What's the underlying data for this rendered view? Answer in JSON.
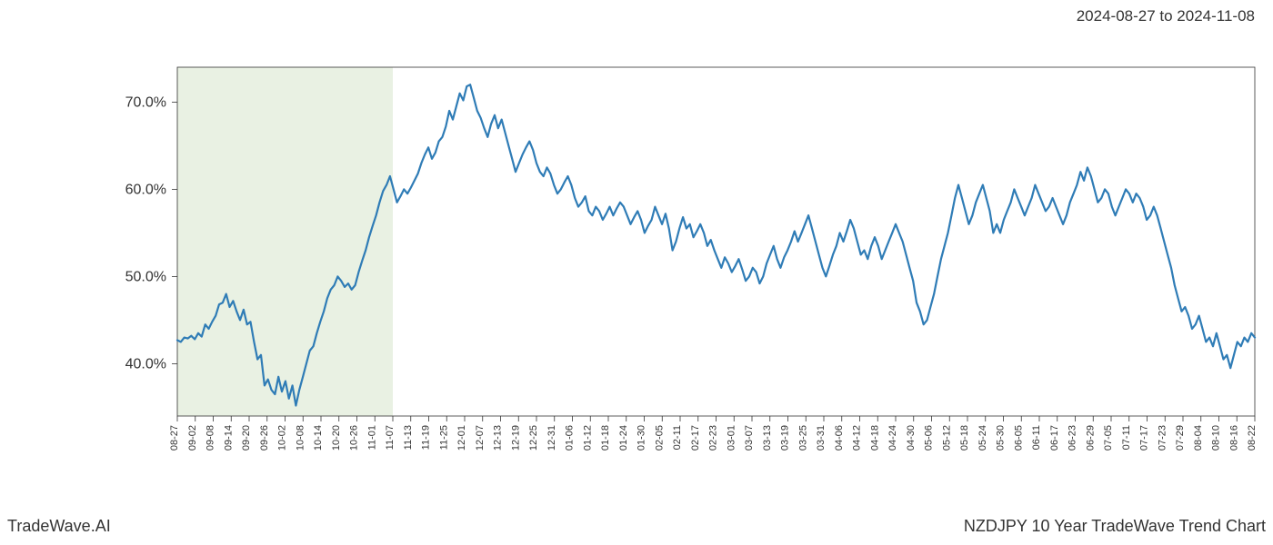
{
  "header": {
    "date_range": "2024-08-27 to 2024-11-08"
  },
  "footer": {
    "left": "TradeWave.AI",
    "right": "NZDJPY 10 Year TradeWave Trend Chart"
  },
  "chart": {
    "type": "line",
    "background_color": "#ffffff",
    "line_color": "#2f7cb6",
    "line_width": 2.2,
    "highlight_band": {
      "color": "#dde9d4",
      "opacity": 0.65,
      "x_start": "08-27",
      "x_end": "11-07"
    },
    "border_color": "#333333",
    "border_width": 0.8,
    "tick_color": "#333333",
    "y_axis": {
      "min": 34,
      "max": 74,
      "ticks": [
        40.0,
        50.0,
        60.0,
        70.0
      ],
      "tick_labels": [
        "40.0%",
        "50.0%",
        "60.0%",
        "70.0%"
      ],
      "label_fontsize": 16
    },
    "x_axis": {
      "labels": [
        "08-27",
        "09-02",
        "09-08",
        "09-14",
        "09-20",
        "09-26",
        "10-02",
        "10-08",
        "10-14",
        "10-20",
        "10-26",
        "11-01",
        "11-07",
        "11-13",
        "11-19",
        "11-25",
        "12-01",
        "12-07",
        "12-13",
        "12-19",
        "12-25",
        "12-31",
        "01-06",
        "01-12",
        "01-18",
        "01-24",
        "01-30",
        "02-05",
        "02-11",
        "02-17",
        "02-23",
        "03-01",
        "03-07",
        "03-13",
        "03-19",
        "03-25",
        "03-31",
        "04-06",
        "04-12",
        "04-18",
        "04-24",
        "04-30",
        "05-06",
        "05-12",
        "05-18",
        "05-24",
        "05-30",
        "06-05",
        "06-11",
        "06-17",
        "06-23",
        "06-29",
        "07-05",
        "07-11",
        "07-17",
        "07-23",
        "07-29",
        "08-04",
        "08-10",
        "08-16",
        "08-22"
      ],
      "label_fontsize": 11,
      "label_rotation": -90
    },
    "series": {
      "values": [
        42.7,
        42.5,
        43.0,
        42.9,
        43.2,
        42.8,
        43.5,
        43.1,
        44.5,
        44.0,
        44.8,
        45.5,
        46.8,
        47.0,
        48.0,
        46.5,
        47.2,
        46.0,
        45.0,
        46.2,
        44.5,
        44.8,
        42.5,
        40.5,
        41.0,
        37.5,
        38.2,
        37.0,
        36.5,
        38.5,
        36.8,
        38.0,
        36.0,
        37.5,
        35.2,
        37.0,
        38.5,
        40.0,
        41.5,
        42.0,
        43.5,
        44.8,
        46.0,
        47.5,
        48.5,
        49.0,
        50.0,
        49.5,
        48.8,
        49.2,
        48.5,
        49.0,
        50.5,
        51.8,
        53.0,
        54.5,
        55.8,
        57.0,
        58.5,
        59.8,
        60.5,
        61.5,
        60.0,
        58.5,
        59.2,
        60.0,
        59.5,
        60.2,
        61.0,
        61.8,
        63.0,
        64.0,
        64.8,
        63.5,
        64.2,
        65.5,
        66.0,
        67.2,
        69.0,
        68.0,
        69.5,
        71.0,
        70.2,
        71.8,
        72.0,
        70.5,
        69.0,
        68.2,
        67.0,
        66.0,
        67.5,
        68.5,
        67.0,
        68.0,
        66.5,
        65.0,
        63.5,
        62.0,
        63.0,
        64.0,
        64.8,
        65.5,
        64.5,
        63.0,
        62.0,
        61.5,
        62.5,
        61.8,
        60.5,
        59.5,
        60.0,
        60.8,
        61.5,
        60.5,
        59.0,
        58.0,
        58.5,
        59.2,
        57.5,
        57.0,
        58.0,
        57.5,
        56.5,
        57.2,
        58.0,
        57.0,
        57.8,
        58.5,
        58.0,
        57.0,
        56.0,
        56.8,
        57.5,
        56.5,
        55.0,
        55.8,
        56.5,
        58.0,
        57.0,
        56.0,
        57.2,
        55.5,
        53.0,
        54.0,
        55.5,
        56.8,
        55.5,
        56.0,
        54.5,
        55.2,
        56.0,
        55.0,
        53.5,
        54.2,
        53.0,
        52.0,
        51.0,
        52.2,
        51.5,
        50.5,
        51.2,
        52.0,
        50.8,
        49.5,
        50.0,
        51.0,
        50.5,
        49.2,
        50.0,
        51.5,
        52.5,
        53.5,
        52.0,
        51.0,
        52.2,
        53.0,
        54.0,
        55.2,
        54.0,
        55.0,
        56.0,
        57.0,
        55.5,
        54.0,
        52.5,
        51.0,
        50.0,
        51.2,
        52.5,
        53.5,
        55.0,
        54.0,
        55.2,
        56.5,
        55.5,
        54.0,
        52.5,
        53.0,
        52.0,
        53.5,
        54.5,
        53.5,
        52.0,
        53.0,
        54.0,
        55.0,
        56.0,
        55.0,
        54.0,
        52.5,
        51.0,
        49.5,
        47.0,
        46.0,
        44.5,
        45.0,
        46.5,
        48.0,
        50.0,
        52.0,
        53.5,
        55.0,
        57.0,
        59.0,
        60.5,
        59.0,
        57.5,
        56.0,
        57.0,
        58.5,
        59.5,
        60.5,
        59.0,
        57.5,
        55.0,
        56.0,
        55.0,
        56.5,
        57.5,
        58.5,
        60.0,
        59.0,
        58.0,
        57.0,
        58.0,
        59.0,
        60.5,
        59.5,
        58.5,
        57.5,
        58.0,
        59.0,
        58.0,
        57.0,
        56.0,
        57.0,
        58.5,
        59.5,
        60.5,
        62.0,
        61.0,
        62.5,
        61.5,
        60.0,
        58.5,
        59.0,
        60.0,
        59.5,
        58.0,
        57.0,
        58.0,
        59.0,
        60.0,
        59.5,
        58.5,
        59.5,
        59.0,
        58.0,
        56.5,
        57.0,
        58.0,
        57.0,
        55.5,
        54.0,
        52.5,
        51.0,
        49.0,
        47.5,
        46.0,
        46.5,
        45.5,
        44.0,
        44.5,
        45.5,
        44.0,
        42.5,
        43.0,
        42.0,
        43.5,
        42.0,
        40.5,
        41.0,
        39.5,
        41.0,
        42.5,
        42.0,
        43.0,
        42.5,
        43.5,
        43.0
      ]
    }
  }
}
